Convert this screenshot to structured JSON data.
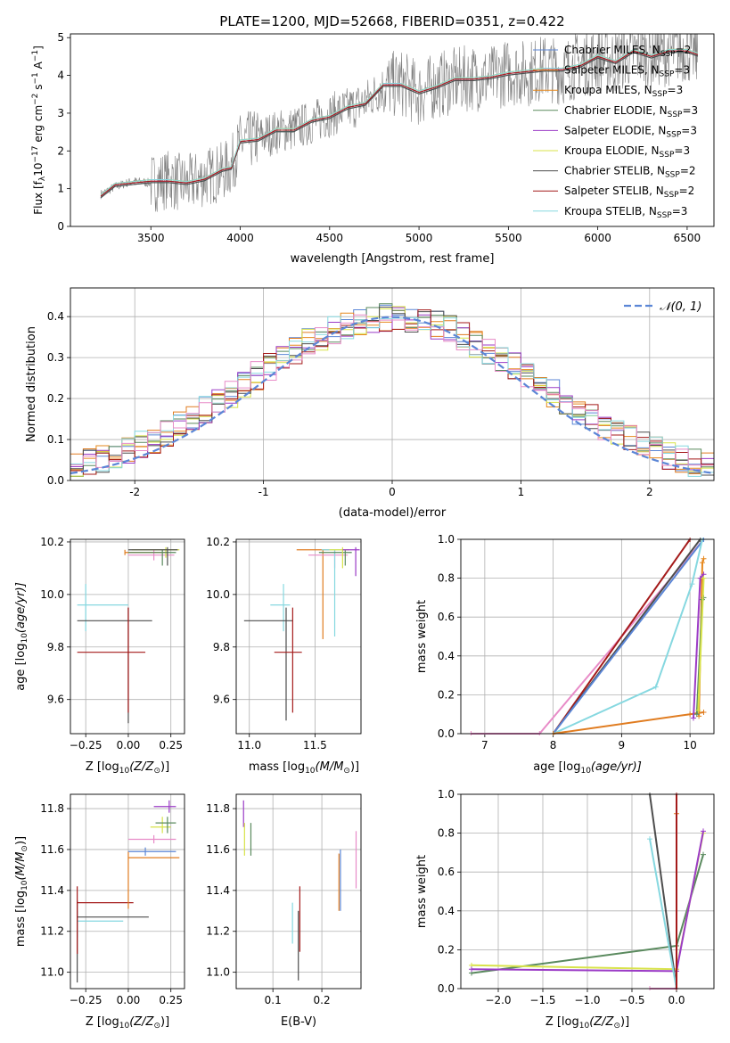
{
  "figure_title": "PLATE=1200, MJD=52668, FIBERID=0351, z=0.422",
  "colors": {
    "chabrier_miles": "#5b86d6",
    "salpeter_miles": "#e07c20",
    "kroupa_miles": "#e6881d",
    "chabrier_elodie": "#5a8a5e",
    "salpeter_elodie": "#9b3bc6",
    "kroupa_elodie": "#d8e34a",
    "chabrier_stelib": "#4d4d4d",
    "salpeter_stelib": "#a41a1a",
    "kroupa_stelib": "#86d8e0",
    "pink": "#e88cc8",
    "data": "#7f7f7f"
  },
  "chart_data": [
    {
      "id": "spectrum",
      "type": "line",
      "title": "PLATE=1200, MJD=52668, FIBERID=0351, z=0.422",
      "xlabel": "wavelength [Angstrom, rest frame]",
      "ylabel_parts": [
        "Flux [f",
        "λ",
        "10",
        "−17",
        " erg cm",
        "−2",
        " s",
        "−1",
        " A",
        "−1",
        "]"
      ],
      "xlim": [
        3050,
        6650
      ],
      "ylim": [
        0,
        5.1
      ],
      "xticks": [
        3500,
        4000,
        4500,
        5000,
        5500,
        6000,
        6500
      ],
      "yticks": [
        0,
        1,
        2,
        3,
        4,
        5
      ],
      "model_x": [
        3220,
        3300,
        3400,
        3500,
        3600,
        3700,
        3800,
        3900,
        3950,
        4000,
        4100,
        4200,
        4300,
        4400,
        4500,
        4600,
        4700,
        4800,
        4900,
        5000,
        5100,
        5200,
        5300,
        5400,
        5500,
        5600,
        5700,
        5800,
        5900,
        6000,
        6100,
        6200,
        6300,
        6400,
        6500,
        6560
      ],
      "model_y": [
        0.85,
        1.05,
        1.2,
        1.15,
        1.25,
        1.1,
        1.3,
        1.45,
        1.6,
        2.2,
        2.35,
        2.5,
        2.6,
        2.75,
        2.95,
        3.1,
        3.3,
        3.7,
        3.8,
        3.5,
        3.75,
        3.85,
        3.95,
        3.9,
        4.1,
        4.05,
        4.2,
        4.1,
        4.3,
        4.45,
        4.4,
        4.6,
        4.55,
        4.6,
        4.7,
        4.5
      ],
      "legend": [
        {
          "name": "Chabrier MILES, N",
          "sub": "SSP",
          "tail": "=2",
          "color": "#5b86d6"
        },
        {
          "name": "Salpeter MILES, N",
          "sub": "SSP",
          "tail": "=3",
          "color": "#e07c20"
        },
        {
          "name": "Kroupa MILES, N",
          "sub": "SSP",
          "tail": "=3",
          "color": "#e6881d"
        },
        {
          "name": "Chabrier ELODIE, N",
          "sub": "SSP",
          "tail": "=3",
          "color": "#5a8a5e"
        },
        {
          "name": "Salpeter ELODIE, N",
          "sub": "SSP",
          "tail": "=3",
          "color": "#9b3bc6"
        },
        {
          "name": "Kroupa ELODIE, N",
          "sub": "SSP",
          "tail": "=3",
          "color": "#d8e34a"
        },
        {
          "name": "Chabrier STELIB, N",
          "sub": "SSP",
          "tail": "=2",
          "color": "#4d4d4d"
        },
        {
          "name": "Salpeter STELIB, N",
          "sub": "SSP",
          "tail": "=2",
          "color": "#a41a1a"
        },
        {
          "name": "Kroupa STELIB, N",
          "sub": "SSP",
          "tail": "=3",
          "color": "#86d8e0"
        }
      ]
    },
    {
      "id": "residuals",
      "type": "step-histogram",
      "xlabel": "(data-model)/error",
      "ylabel": "Normed distribution",
      "xlim": [
        -2.5,
        2.5
      ],
      "ylim": [
        0,
        0.47
      ],
      "xticks": [
        -2,
        -1,
        0,
        1,
        2
      ],
      "yticks": [
        0.0,
        0.1,
        0.2,
        0.3,
        0.4
      ],
      "gaussian_legend": "𝒩(0, 1)",
      "gaussian_color": "#5b86d6",
      "bin_width": 0.1
    },
    {
      "id": "age_vs_Z",
      "type": "errorbar",
      "xlabel": "Z [log10(Z/Z⊙)]",
      "xlabel_parts": [
        "Z [log",
        "10",
        "(Z/Z",
        "⊙",
        ")]"
      ],
      "ylabel_parts": [
        "age  [log",
        "10",
        "(age/yr)]"
      ],
      "xlim": [
        -0.34,
        0.33
      ],
      "ylim": [
        9.47,
        10.21
      ],
      "xticks": [
        -0.25,
        0.0,
        0.25
      ],
      "xtick_labels": [
        "−0.25",
        "0.00",
        "0.25"
      ],
      "yticks": [
        9.6,
        9.8,
        10.0,
        10.2
      ],
      "points": [
        {
          "color": "#86d8e0",
          "x": -0.25,
          "y": 9.96,
          "xerr": [
            0.05,
            0.25
          ],
          "yerr": [
            0.1,
            0.08
          ]
        },
        {
          "color": "#4d4d4d",
          "x": 0.0,
          "y": 9.9,
          "xerr": [
            0.3,
            0.14
          ],
          "yerr": [
            0.39,
            0.05
          ]
        },
        {
          "color": "#a41a1a",
          "x": 0.0,
          "y": 9.78,
          "xerr": [
            0.3,
            0.1
          ],
          "yerr": [
            0.23,
            0.17
          ]
        },
        {
          "color": "#e07c20",
          "x": -0.02,
          "y": 10.16,
          "xerr": [
            0.0,
            0.25
          ],
          "yerr": [
            0.01,
            0.01
          ]
        },
        {
          "color": "#e88cc8",
          "x": 0.15,
          "y": 10.15,
          "xerr": [
            0.15,
            0.12
          ],
          "yerr": [
            0.02,
            0.02
          ]
        },
        {
          "color": "#d8e34a",
          "x": 0.22,
          "y": 10.17,
          "xerr": [
            0.2,
            0.08
          ],
          "yerr": [
            0.03,
            0.01
          ]
        },
        {
          "color": "#5a8a5e",
          "x": 0.2,
          "y": 10.16,
          "xerr": [
            0.2,
            0.08
          ],
          "yerr": [
            0.05,
            0.01
          ]
        },
        {
          "color": "#4d4d4d",
          "x": 0.23,
          "y": 10.17,
          "xerr": [
            0.23,
            0.06
          ],
          "yerr": [
            0.06,
            0.01
          ]
        }
      ]
    },
    {
      "id": "age_vs_mass",
      "type": "errorbar",
      "xlabel_parts": [
        "mass [log",
        "10",
        "(M/M",
        "⊙",
        ")]"
      ],
      "xlim": [
        10.9,
        11.85
      ],
      "ylim": [
        9.47,
        10.21
      ],
      "xticks": [
        11.0,
        11.5
      ],
      "xtick_labels": [
        "11.0",
        "11.5"
      ],
      "yticks": [
        9.6,
        9.8,
        10.0,
        10.2
      ],
      "points": [
        {
          "color": "#86d8e0",
          "x": 11.26,
          "y": 9.96,
          "xerr": [
            0.1,
            0.05
          ],
          "yerr": [
            0.1,
            0.08
          ]
        },
        {
          "color": "#4d4d4d",
          "x": 11.28,
          "y": 9.9,
          "xerr": [
            0.32,
            0.05
          ],
          "yerr": [
            0.38,
            0.05
          ]
        },
        {
          "color": "#a41a1a",
          "x": 11.33,
          "y": 9.78,
          "xerr": [
            0.14,
            0.07
          ],
          "yerr": [
            0.23,
            0.17
          ]
        },
        {
          "color": "#e07c20",
          "x": 11.56,
          "y": 10.17,
          "xerr": [
            0.2,
            0.05
          ],
          "yerr": [
            0.34,
            0.0
          ]
        },
        {
          "color": "#e88cc8",
          "x": 11.65,
          "y": 10.15,
          "xerr": [
            0.2,
            0.1
          ],
          "yerr": [
            0.05,
            0.02
          ]
        },
        {
          "color": "#86d8e0",
          "x": 11.65,
          "y": 10.17,
          "xerr": [
            0.1,
            0.05
          ],
          "yerr": [
            0.33,
            0.0
          ]
        },
        {
          "color": "#5a8a5e",
          "x": 11.73,
          "y": 10.16,
          "xerr": [
            0.2,
            0.05
          ],
          "yerr": [
            0.05,
            0.01
          ]
        },
        {
          "color": "#d8e34a",
          "x": 11.71,
          "y": 10.17,
          "xerr": [
            0.1,
            0.05
          ],
          "yerr": [
            0.07,
            0.01
          ]
        },
        {
          "color": "#9b3bc6",
          "x": 11.81,
          "y": 10.17,
          "xerr": [
            0.1,
            0.03
          ],
          "yerr": [
            0.1,
            0.01
          ]
        }
      ]
    },
    {
      "id": "weight_vs_age",
      "type": "line",
      "xlabel_parts": [
        "age  [log",
        "10",
        "(age/yr)]"
      ],
      "ylabel": "mass weight",
      "xlim": [
        6.65,
        10.35
      ],
      "ylim": [
        0.0,
        1.0
      ],
      "xticks": [
        7,
        8,
        9,
        10
      ],
      "yticks": [
        0.0,
        0.2,
        0.4,
        0.6,
        0.8,
        1.0
      ],
      "series": [
        {
          "color": "#e88cc8",
          "x": [
            6.8,
            7.8,
            10.2
          ],
          "y": [
            0.0,
            0.0,
            1.0
          ]
        },
        {
          "color": "#a41a1a",
          "x": [
            8.0,
            10.0
          ],
          "y": [
            0.0,
            1.0
          ]
        },
        {
          "color": "#4d4d4d",
          "x": [
            8.0,
            10.15
          ],
          "y": [
            0.0,
            1.0
          ]
        },
        {
          "color": "#5b86d6",
          "x": [
            8.0,
            10.2
          ],
          "y": [
            0.0,
            1.0
          ]
        },
        {
          "color": "#86d8e0",
          "x": [
            8.0,
            9.5,
            10.03,
            10.18
          ],
          "y": [
            0.0,
            0.24,
            0.77,
            1.0
          ]
        },
        {
          "color": "#e07c20",
          "x": [
            8.0,
            10.0,
            10.2
          ],
          "y": [
            0.0,
            0.1,
            0.11
          ]
        },
        {
          "color": "#e6881d",
          "x": [
            10.13,
            10.18,
            10.2
          ],
          "y": [
            0.09,
            0.88,
            0.9
          ]
        },
        {
          "color": "#9b3bc6",
          "x": [
            10.05,
            10.15,
            10.2
          ],
          "y": [
            0.08,
            0.8,
            0.82
          ]
        },
        {
          "color": "#5a8a5e",
          "x": [
            10.1,
            10.18,
            10.2
          ],
          "y": [
            0.1,
            0.69,
            0.7
          ]
        },
        {
          "color": "#d8e34a",
          "x": [
            10.12,
            10.2
          ],
          "y": [
            0.12,
            0.8
          ]
        }
      ]
    },
    {
      "id": "mass_vs_Z",
      "type": "errorbar",
      "xlabel_parts": [
        "Z [log",
        "10",
        "(Z/Z",
        "⊙",
        ")]"
      ],
      "ylabel_parts": [
        "mass [log",
        "10",
        "(M/M",
        "⊙",
        ")]"
      ],
      "xlim": [
        -0.34,
        0.33
      ],
      "ylim": [
        10.92,
        11.87
      ],
      "xticks": [
        -0.25,
        0.0,
        0.25
      ],
      "xtick_labels": [
        "−0.25",
        "0.00",
        "0.25"
      ],
      "yticks": [
        11.0,
        11.2,
        11.4,
        11.6,
        11.8
      ],
      "points": [
        {
          "color": "#86d8e0",
          "x": -0.3,
          "y": 11.25,
          "xerr": [
            0.0,
            0.27
          ],
          "yerr": [
            0.08,
            0.05
          ]
        },
        {
          "color": "#4d4d4d",
          "x": -0.3,
          "y": 11.27,
          "xerr": [
            0.0,
            0.42
          ],
          "yerr": [
            0.32,
            0.08
          ]
        },
        {
          "color": "#a41a1a",
          "x": -0.3,
          "y": 11.34,
          "xerr": [
            0.0,
            0.33
          ],
          "yerr": [
            0.25,
            0.08
          ]
        },
        {
          "color": "#e07c20",
          "x": 0.0,
          "y": 11.56,
          "xerr": [
            0.0,
            0.3
          ],
          "yerr": [
            0.25,
            0.03
          ]
        },
        {
          "color": "#5b86d6",
          "x": 0.1,
          "y": 11.59,
          "xerr": [
            0.1,
            0.18
          ],
          "yerr": [
            0.02,
            0.02
          ]
        },
        {
          "color": "#e88cc8",
          "x": 0.15,
          "y": 11.65,
          "xerr": [
            0.15,
            0.13
          ],
          "yerr": [
            0.02,
            0.02
          ]
        },
        {
          "color": "#d8e34a",
          "x": 0.2,
          "y": 11.71,
          "xerr": [
            0.07,
            0.05
          ],
          "yerr": [
            0.03,
            0.05
          ]
        },
        {
          "color": "#5a8a5e",
          "x": 0.23,
          "y": 11.73,
          "xerr": [
            0.07,
            0.05
          ],
          "yerr": [
            0.05,
            0.03
          ]
        },
        {
          "color": "#9b3bc6",
          "x": 0.24,
          "y": 11.81,
          "xerr": [
            0.09,
            0.04
          ],
          "yerr": [
            0.03,
            0.03
          ]
        }
      ]
    },
    {
      "id": "mass_vs_EBV",
      "type": "errorbar",
      "xlabel": "E(B-V)",
      "xlim": [
        0.025,
        0.28
      ],
      "ylim": [
        10.92,
        11.87
      ],
      "xticks": [
        0.1,
        0.2
      ],
      "xtick_labels": [
        "0.1",
        "0.2"
      ],
      "yticks": [
        11.0,
        11.2,
        11.4,
        11.6,
        11.8
      ],
      "points": [
        {
          "color": "#9b3bc6",
          "x": 0.04,
          "y": 11.76,
          "xerr": [
            0,
            0
          ],
          "yerr": [
            0.05,
            0.08
          ]
        },
        {
          "color": "#d8e34a",
          "x": 0.042,
          "y": 11.65,
          "xerr": [
            0,
            0
          ],
          "yerr": [
            0.08,
            0.08
          ]
        },
        {
          "color": "#5a8a5e",
          "x": 0.055,
          "y": 11.65,
          "xerr": [
            0,
            0
          ],
          "yerr": [
            0.08,
            0.08
          ]
        },
        {
          "color": "#86d8e0",
          "x": 0.14,
          "y": 11.24,
          "xerr": [
            0,
            0
          ],
          "yerr": [
            0.1,
            0.1
          ]
        },
        {
          "color": "#4d4d4d",
          "x": 0.152,
          "y": 11.3,
          "xerr": [
            0,
            0
          ],
          "yerr": [
            0.34,
            0.0
          ]
        },
        {
          "color": "#a41a1a",
          "x": 0.155,
          "y": 11.3,
          "xerr": [
            0,
            0
          ],
          "yerr": [
            0.2,
            0.12
          ]
        },
        {
          "color": "#e07c20",
          "x": 0.235,
          "y": 11.44,
          "xerr": [
            0,
            0
          ],
          "yerr": [
            0.14,
            0.14
          ]
        },
        {
          "color": "#5b86d6",
          "x": 0.238,
          "y": 11.45,
          "xerr": [
            0,
            0
          ],
          "yerr": [
            0.15,
            0.15
          ]
        },
        {
          "color": "#e88cc8",
          "x": 0.27,
          "y": 11.55,
          "xerr": [
            0,
            0
          ],
          "yerr": [
            0.14,
            0.14
          ]
        }
      ]
    },
    {
      "id": "weight_vs_Z",
      "type": "line",
      "xlabel_parts": [
        "Z [log",
        "10",
        "(Z/Z",
        "⊙",
        ")]"
      ],
      "ylabel": "mass weight",
      "xlim": [
        -2.42,
        0.42
      ],
      "ylim": [
        0.0,
        1.0
      ],
      "xticks": [
        -2.0,
        -1.5,
        -1.0,
        -0.5,
        0.0
      ],
      "xtick_labels": [
        "−2.0",
        "−1.5",
        "−1.0",
        "−0.5",
        "0.0"
      ],
      "yticks": [
        0.0,
        0.2,
        0.4,
        0.6,
        0.8,
        1.0
      ],
      "series": [
        {
          "color": "#5a8a5e",
          "x": [
            -2.3,
            0.0,
            0.3
          ],
          "y": [
            0.08,
            0.22,
            0.69
          ]
        },
        {
          "color": "#d8e34a",
          "x": [
            -2.3,
            0.0,
            0.3
          ],
          "y": [
            0.12,
            0.1,
            0.8
          ]
        },
        {
          "color": "#9b3bc6",
          "x": [
            -2.3,
            0.0,
            0.3
          ],
          "y": [
            0.1,
            0.09,
            0.81
          ]
        },
        {
          "color": "#4d4d4d",
          "x": [
            -0.3,
            0.0
          ],
          "y": [
            1.0,
            0.0
          ]
        },
        {
          "color": "#86d8e0",
          "x": [
            -0.3,
            0.0
          ],
          "y": [
            0.77,
            0.0
          ]
        },
        {
          "color": "#e07c20",
          "x": [
            -0.3,
            0.0,
            0.0
          ],
          "y": [
            0.0,
            0.0,
            0.9
          ]
        },
        {
          "color": "#e88cc8",
          "x": [
            -0.3,
            0.0,
            0.0
          ],
          "y": [
            0.0,
            0.0,
            1.0
          ]
        },
        {
          "color": "#a41a1a",
          "x": [
            0.0,
            0.0
          ],
          "y": [
            0.0,
            1.0
          ]
        }
      ]
    }
  ]
}
